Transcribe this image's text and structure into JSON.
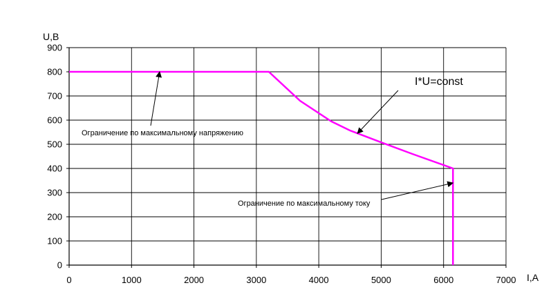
{
  "chart_data": {
    "type": "line",
    "title": "",
    "xlabel": "I,A",
    "ylabel": "U,B",
    "xlim": [
      0,
      7000
    ],
    "ylim": [
      0,
      900
    ],
    "xticks": [
      "0",
      "1000",
      "2000",
      "3000",
      "4000",
      "5000",
      "6000",
      "7000"
    ],
    "yticks": [
      "0",
      "100",
      "200",
      "300",
      "400",
      "500",
      "600",
      "700",
      "800",
      "900"
    ],
    "grid": true,
    "series": [
      {
        "color": "#ff00ff",
        "points": [
          [
            0,
            800
          ],
          [
            3200,
            800
          ],
          [
            3700,
            680
          ],
          [
            4200,
            595
          ],
          [
            4500,
            557
          ],
          [
            5000,
            508
          ],
          [
            5500,
            460
          ],
          [
            6000,
            414
          ],
          [
            6150,
            400
          ],
          [
            6150,
            0
          ]
        ]
      }
    ],
    "annotations": [
      {
        "text": "Ограничение по максимальному напряжению",
        "size": "small",
        "arrow_to": [
          1450,
          800
        ]
      },
      {
        "text": "I*U=const",
        "size": "large",
        "arrow_to": [
          4620,
          545
        ]
      },
      {
        "text": "Ограничение по максимальному току",
        "size": "small",
        "arrow_to": [
          6150,
          340
        ]
      }
    ]
  }
}
